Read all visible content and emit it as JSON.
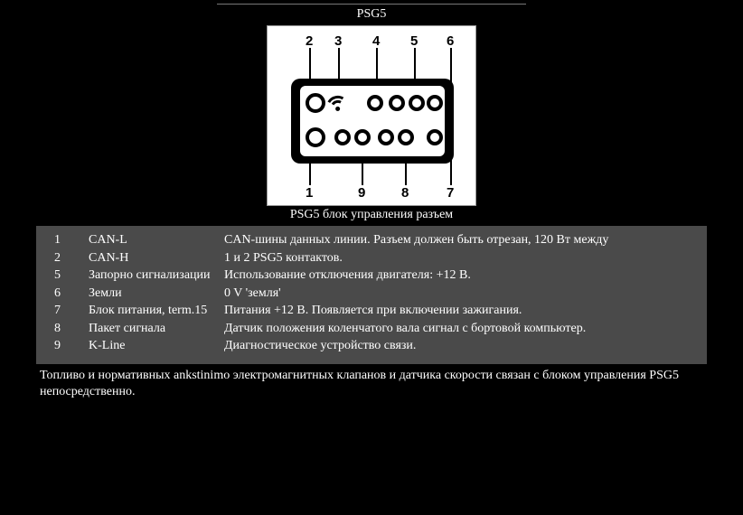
{
  "title": "PSG5",
  "caption": "PSG5 блок управления разъем",
  "diagram": {
    "top_labels": [
      "2",
      "3",
      "4",
      "5",
      "6"
    ],
    "bottom_labels": [
      "1",
      "9",
      "8",
      "7"
    ]
  },
  "rows": [
    {
      "num": "1",
      "name": "CAN-L",
      "desc": "CAN-шины данных линии. Разъем должен быть отрезан, 120 Вт между"
    },
    {
      "num": "2",
      "name": "CAN-H",
      "desc": "1 и 2 PSG5 контактов."
    },
    {
      "num": "5",
      "name": "Запорно сигнализации",
      "desc": "Использование отключения двигателя: +12 В."
    },
    {
      "num": "6",
      "name": "Земли",
      "desc": "0 V 'земля'"
    },
    {
      "num": "7",
      "name": "Блок питания, term.15",
      "desc": "Питания +12 В. Появляется при включении зажигания."
    },
    {
      "num": "8",
      "name": "Пакет сигнала",
      "desc": "Датчик положения коленчатого вала сигнал с бортовой компьютер."
    },
    {
      "num": "9",
      "name": "K-Line",
      "desc": "Диагностическое устройство связи."
    }
  ],
  "footer": "Топливо и нормативных ankstinimo электромагнитных клапанов и датчика скорости связан с блоком управления PSG5 непосредственно."
}
